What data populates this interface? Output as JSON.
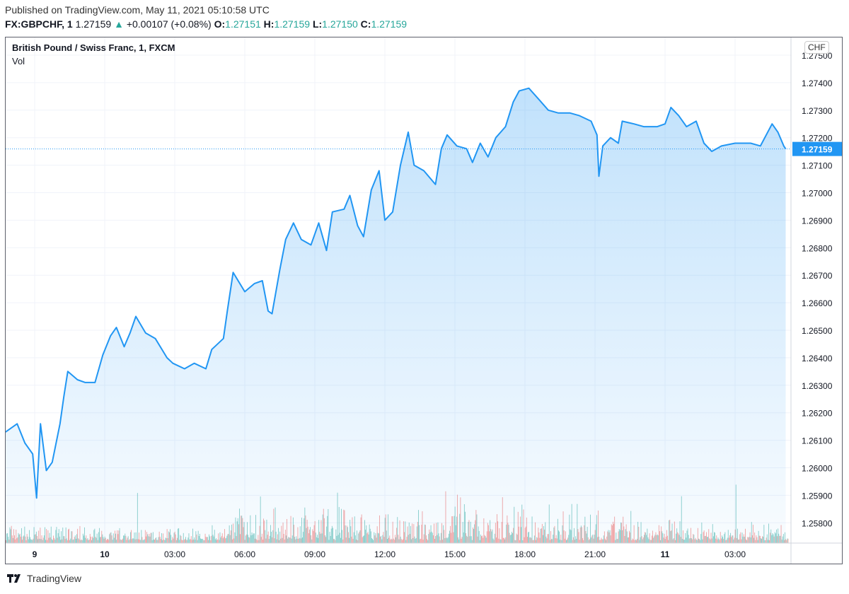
{
  "header": {
    "published": "Published on TradingView.com, May 11, 2021 05:10:58 UTC",
    "symbol": "FX:GBPCHF, 1",
    "last": "1.27159",
    "change": "+0.00107 (+0.08%)",
    "o_label": "O:",
    "o": "1.27151",
    "h_label": "H:",
    "h": "1.27159",
    "l_label": "L:",
    "l": "1.27150",
    "c_label": "C:",
    "c": "1.27159"
  },
  "legend": {
    "title": "British Pound / Swiss Franc, 1, FXCM",
    "vol": "Vol"
  },
  "currency": "CHF",
  "footer": {
    "brand": "TradingView"
  },
  "colors": {
    "line": "#2196f3",
    "up": "#26a69a",
    "down": "#ef5350",
    "last_price_bg": "#2196f3"
  },
  "chart_data": {
    "type": "area",
    "y_ticks": [
      "1.27500",
      "1.27400",
      "1.27300",
      "1.27200",
      "1.27100",
      "1.27000",
      "1.26900",
      "1.26800",
      "1.26700",
      "1.26600",
      "1.26500",
      "1.26400",
      "1.26300",
      "1.26200",
      "1.26100",
      "1.26000",
      "1.25900",
      "1.25800"
    ],
    "x_ticks": [
      {
        "label": "9",
        "t": "9 21:00",
        "bold": true
      },
      {
        "label": "10",
        "t": "10 00:00",
        "bold": true
      },
      {
        "label": "03:00",
        "t": "10 03:00"
      },
      {
        "label": "06:00",
        "t": "10 06:00"
      },
      {
        "label": "09:00",
        "t": "10 09:00"
      },
      {
        "label": "12:00",
        "t": "10 12:00"
      },
      {
        "label": "15:00",
        "t": "10 15:00"
      },
      {
        "label": "18:00",
        "t": "10 18:00"
      },
      {
        "label": "21:00",
        "t": "10 21:00"
      },
      {
        "label": "11",
        "t": "11 00:00",
        "bold": true
      },
      {
        "label": "03:00",
        "t": "11 03:00"
      }
    ],
    "ylim": [
      1.2574,
      1.2752
    ],
    "last_price": "1.27159",
    "grid": true,
    "volume_shown": true,
    "series": [
      {
        "points": [
          [
            "9 19:45",
            1.2613
          ],
          [
            "9 20:15",
            1.2616
          ],
          [
            "9 20:35",
            1.2609
          ],
          [
            "9 20:55",
            1.2605
          ],
          [
            "9 21:05",
            1.2589
          ],
          [
            "9 21:15",
            1.2616
          ],
          [
            "9 21:30",
            1.2599
          ],
          [
            "9 21:45",
            1.2602
          ],
          [
            "9 22:05",
            1.2616
          ],
          [
            "9 22:15",
            1.2626
          ],
          [
            "9 22:25",
            1.2635
          ],
          [
            "9 22:50",
            1.2632
          ],
          [
            "9 23:10",
            1.2631
          ],
          [
            "9 23:35",
            1.2631
          ],
          [
            "9 23:55",
            1.2641
          ],
          [
            "10 00:15",
            1.2648
          ],
          [
            "10 00:30",
            1.2651
          ],
          [
            "10 00:50",
            1.2644
          ],
          [
            "10 01:05",
            1.2649
          ],
          [
            "10 01:20",
            1.2655
          ],
          [
            "10 01:45",
            1.2649
          ],
          [
            "10 02:10",
            1.2647
          ],
          [
            "10 02:40",
            1.264
          ],
          [
            "10 02:55",
            1.2638
          ],
          [
            "10 03:25",
            1.2636
          ],
          [
            "10 03:50",
            1.2638
          ],
          [
            "10 04:20",
            1.2636
          ],
          [
            "10 04:35",
            1.2643
          ],
          [
            "10 05:05",
            1.2647
          ],
          [
            "10 05:15",
            1.2657
          ],
          [
            "10 05:30",
            1.2671
          ],
          [
            "10 06:00",
            1.2664
          ],
          [
            "10 06:25",
            1.2667
          ],
          [
            "10 06:45",
            1.2668
          ],
          [
            "10 07:00",
            1.2657
          ],
          [
            "10 07:10",
            1.2656
          ],
          [
            "10 07:30",
            1.2672
          ],
          [
            "10 07:45",
            1.2683
          ],
          [
            "10 08:05",
            1.2689
          ],
          [
            "10 08:25",
            1.2683
          ],
          [
            "10 08:50",
            1.2681
          ],
          [
            "10 09:10",
            1.2689
          ],
          [
            "10 09:30",
            1.2679
          ],
          [
            "10 09:45",
            1.2693
          ],
          [
            "10 10:15",
            1.2694
          ],
          [
            "10 10:30",
            1.2699
          ],
          [
            "10 10:50",
            1.2688
          ],
          [
            "10 11:05",
            1.2684
          ],
          [
            "10 11:25",
            1.2701
          ],
          [
            "10 11:45",
            1.2708
          ],
          [
            "10 12:00",
            1.269
          ],
          [
            "10 12:20",
            1.2693
          ],
          [
            "10 12:40",
            1.271
          ],
          [
            "10 13:00",
            1.2722
          ],
          [
            "10 13:15",
            1.271
          ],
          [
            "10 13:40",
            1.2708
          ],
          [
            "10 14:10",
            1.2703
          ],
          [
            "10 14:25",
            1.2716
          ],
          [
            "10 14:40",
            1.2721
          ],
          [
            "10 15:05",
            1.2717
          ],
          [
            "10 15:30",
            1.2716
          ],
          [
            "10 15:45",
            1.2711
          ],
          [
            "10 16:05",
            1.2718
          ],
          [
            "10 16:25",
            1.2713
          ],
          [
            "10 16:45",
            1.272
          ],
          [
            "10 17:10",
            1.2724
          ],
          [
            "10 17:30",
            1.2733
          ],
          [
            "10 17:45",
            1.2737
          ],
          [
            "10 18:10",
            1.2738
          ],
          [
            "10 18:35",
            1.2734
          ],
          [
            "10 19:00",
            1.273
          ],
          [
            "10 19:25",
            1.2729
          ],
          [
            "10 19:55",
            1.2729
          ],
          [
            "10 20:20",
            1.2728
          ],
          [
            "10 20:50",
            1.2726
          ],
          [
            "10 21:05",
            1.2721
          ],
          [
            "10 21:10",
            1.2706
          ],
          [
            "10 21:20",
            1.2717
          ],
          [
            "10 21:40",
            1.272
          ],
          [
            "10 22:00",
            1.2718
          ],
          [
            "10 22:10",
            1.2726
          ],
          [
            "10 22:40",
            1.2725
          ],
          [
            "10 23:05",
            1.2724
          ],
          [
            "10 23:40",
            1.2724
          ],
          [
            "11 00:00",
            1.2725
          ],
          [
            "11 00:15",
            1.2731
          ],
          [
            "11 00:35",
            1.2728
          ],
          [
            "11 00:55",
            1.2724
          ],
          [
            "11 01:20",
            1.2726
          ],
          [
            "11 01:40",
            1.2718
          ],
          [
            "11 02:00",
            1.2715
          ],
          [
            "11 02:25",
            1.2717
          ],
          [
            "11 03:00",
            1.2718
          ],
          [
            "11 03:40",
            1.2718
          ],
          [
            "11 04:05",
            1.2717
          ],
          [
            "11 04:35",
            1.2725
          ],
          [
            "11 04:50",
            1.2722
          ],
          [
            "11 05:05",
            1.2717
          ],
          [
            "11 05:10",
            1.27159
          ]
        ]
      }
    ]
  }
}
